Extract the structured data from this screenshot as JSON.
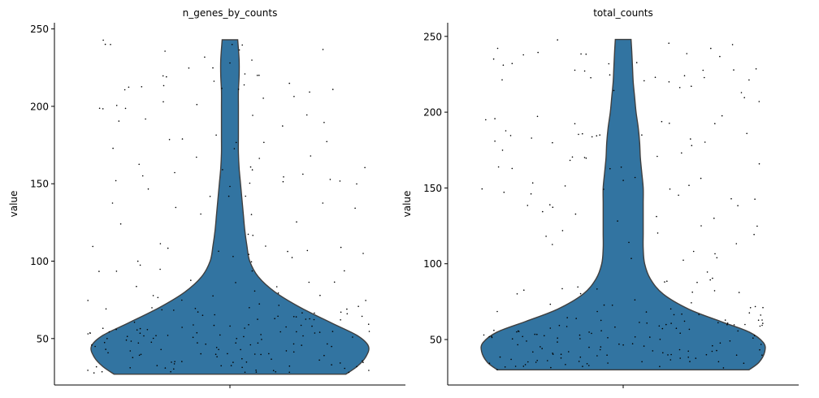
{
  "chart_data": [
    {
      "type": "violin",
      "title": "n_genes_by_counts",
      "ylabel": "value",
      "xlabel": "",
      "ylim": [
        20,
        254
      ],
      "yticks": [
        50,
        100,
        150,
        200,
        250
      ],
      "data_range": [
        27,
        243
      ],
      "fill_color": "#3274a1",
      "point_color": "#000000",
      "grid": false,
      "density_profile": [
        {
          "y": 27,
          "half_width": 0.82
        },
        {
          "y": 32,
          "half_width": 0.9
        },
        {
          "y": 38,
          "half_width": 0.96
        },
        {
          "y": 45,
          "half_width": 0.98
        },
        {
          "y": 52,
          "half_width": 0.9
        },
        {
          "y": 60,
          "half_width": 0.72
        },
        {
          "y": 70,
          "half_width": 0.5
        },
        {
          "y": 80,
          "half_width": 0.32
        },
        {
          "y": 90,
          "half_width": 0.2
        },
        {
          "y": 100,
          "half_width": 0.14
        },
        {
          "y": 110,
          "half_width": 0.12
        },
        {
          "y": 120,
          "half_width": 0.105
        },
        {
          "y": 130,
          "half_width": 0.095
        },
        {
          "y": 140,
          "half_width": 0.085
        },
        {
          "y": 150,
          "half_width": 0.075
        },
        {
          "y": 160,
          "half_width": 0.065
        },
        {
          "y": 170,
          "half_width": 0.06
        },
        {
          "y": 180,
          "half_width": 0.06
        },
        {
          "y": 190,
          "half_width": 0.06
        },
        {
          "y": 200,
          "half_width": 0.06
        },
        {
          "y": 210,
          "half_width": 0.06
        },
        {
          "y": 220,
          "half_width": 0.065
        },
        {
          "y": 230,
          "half_width": 0.065
        },
        {
          "y": 243,
          "half_width": 0.055
        }
      ]
    },
    {
      "type": "violin",
      "title": "total_counts",
      "ylabel": "value",
      "xlabel": "",
      "ylim": [
        20,
        259
      ],
      "yticks": [
        50,
        100,
        150,
        200,
        250
      ],
      "data_range": [
        30,
        248
      ],
      "fill_color": "#3274a1",
      "point_color": "#000000",
      "grid": false,
      "density_profile": [
        {
          "y": 30,
          "half_width": 0.88
        },
        {
          "y": 35,
          "half_width": 0.95
        },
        {
          "y": 42,
          "half_width": 0.99
        },
        {
          "y": 48,
          "half_width": 0.98
        },
        {
          "y": 55,
          "half_width": 0.88
        },
        {
          "y": 62,
          "half_width": 0.68
        },
        {
          "y": 70,
          "half_width": 0.46
        },
        {
          "y": 80,
          "half_width": 0.28
        },
        {
          "y": 90,
          "half_width": 0.19
        },
        {
          "y": 100,
          "half_width": 0.15
        },
        {
          "y": 110,
          "half_width": 0.14
        },
        {
          "y": 120,
          "half_width": 0.14
        },
        {
          "y": 130,
          "half_width": 0.14
        },
        {
          "y": 140,
          "half_width": 0.14
        },
        {
          "y": 150,
          "half_width": 0.14
        },
        {
          "y": 160,
          "half_width": 0.13
        },
        {
          "y": 170,
          "half_width": 0.12
        },
        {
          "y": 180,
          "half_width": 0.115
        },
        {
          "y": 190,
          "half_width": 0.105
        },
        {
          "y": 200,
          "half_width": 0.09
        },
        {
          "y": 210,
          "half_width": 0.08
        },
        {
          "y": 220,
          "half_width": 0.07
        },
        {
          "y": 230,
          "half_width": 0.065
        },
        {
          "y": 240,
          "half_width": 0.06
        },
        {
          "y": 248,
          "half_width": 0.055
        }
      ]
    }
  ]
}
